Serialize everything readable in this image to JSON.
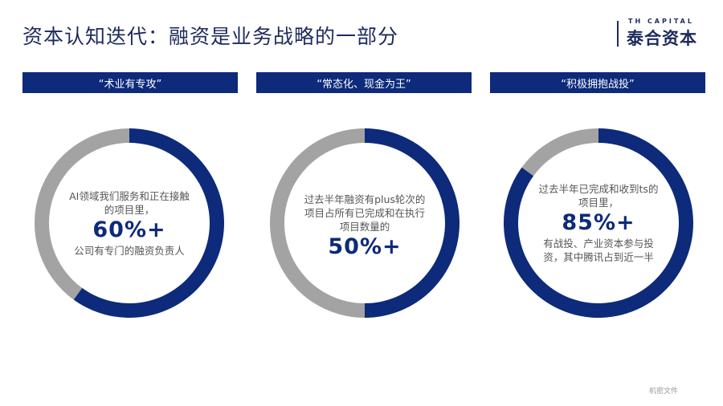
{
  "header": {
    "title": "资本认知迭代：融资是业务战略的一部分",
    "logo_en": "TH CAPITAL",
    "logo_cn": "泰合资本"
  },
  "colors": {
    "primary": "#0d2a7b",
    "secondary": "#a3a3a3"
  },
  "panels": [
    {
      "heading": "“术业有专攻”",
      "text_top": "AI领域我们服务和正在接触的项目里，",
      "value_label": "60%+",
      "text_bottom": "公司有专门的融资负责人"
    },
    {
      "heading": "“常态化、现金为王”",
      "text_top": "过去半年融资有plus轮次的项目占所有已完成和在执行项目数量的",
      "value_label": "50%+",
      "text_bottom": ""
    },
    {
      "heading": "“积极拥抱战投”",
      "text_top": "过去半年已完成和收到ts的项目里，",
      "value_label": "85%+",
      "text_bottom": "有战投、产业资本参与投资，其中腾讯占到近一半"
    }
  ],
  "chart_data": [
    {
      "type": "pie",
      "categories": [
        "",
        ""
      ],
      "values": [
        60,
        40
      ],
      "title": ""
    },
    {
      "type": "pie",
      "categories": [
        "",
        ""
      ],
      "values": [
        50,
        50
      ],
      "title": ""
    },
    {
      "type": "pie",
      "categories": [
        "",
        ""
      ],
      "values": [
        85,
        15
      ],
      "title": ""
    }
  ],
  "footer": {
    "label": "机密文件"
  }
}
